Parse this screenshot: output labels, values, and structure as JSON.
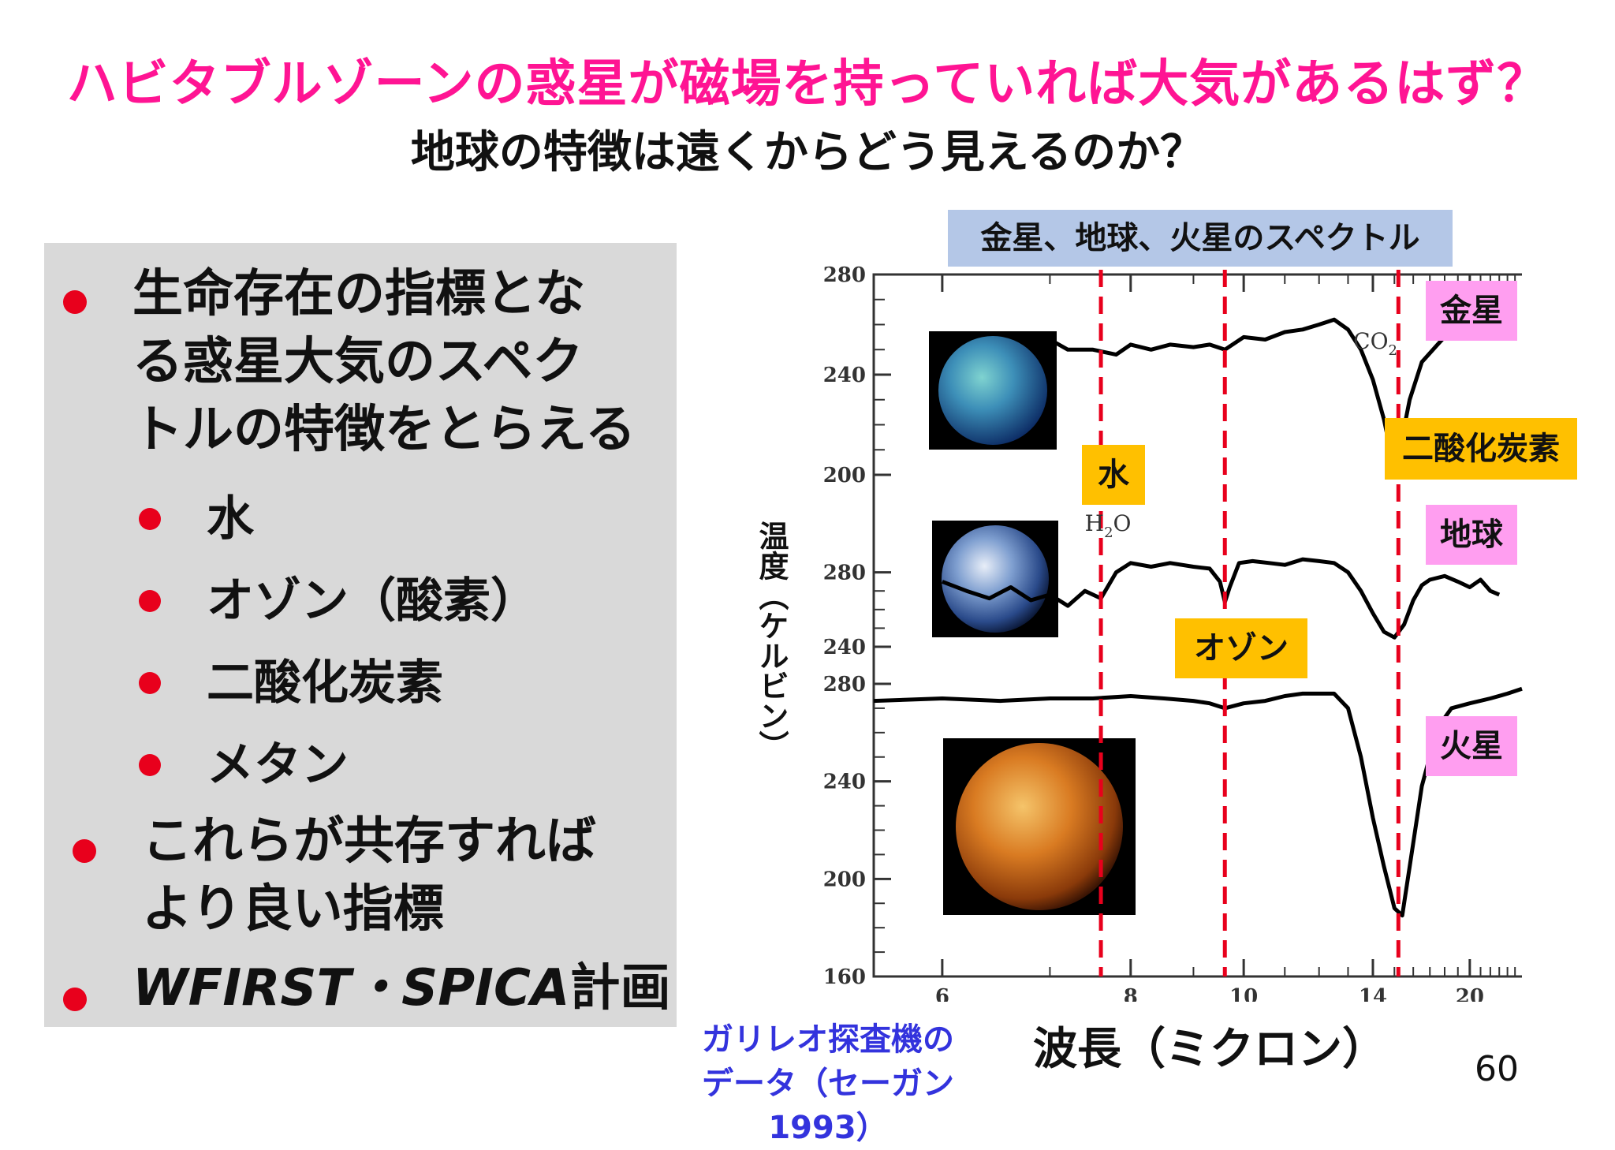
{
  "title_main": "ハビタブルゾーンの惑星が磁場を持っていれば大気があるはず？",
  "title_sub": "地球の特徴は遠くからどう見えるのか？",
  "bullets": {
    "item1": [
      "生命存在の指標とな",
      "る惑星大気のスペク",
      "トルの特徴をとらえる"
    ],
    "sub_items": [
      "水",
      "オゾン（酸素）",
      "二酸化炭素",
      "メタン"
    ],
    "item2": [
      "これらが共存すれば",
      "より良い指標"
    ],
    "item3_italic": "WFIRST・SPICA",
    "item3_rest": "計画"
  },
  "chart_header": "金星、地球、火星のスペクトル",
  "colors": {
    "title_pink": "#ff1493",
    "bullet_red": "#e8001c",
    "dashed_red": "#e8001c",
    "panel_grey": "#d9d9d9",
    "label_pink": "#ff9ef0",
    "label_orange": "#ffc000",
    "label_blue": "#b4c7e7",
    "credit_blue": "#3333dd"
  },
  "chart_data": {
    "type": "line",
    "xlabel": "波長（ミクロン）",
    "ylabel": "温度（ケルビン）",
    "x_scale": "reciprocal",
    "x_ticks": [
      6,
      8,
      10,
      14,
      20
    ],
    "dashed_markers_micron": [
      7.6,
      9.6,
      15.2
    ],
    "panels": [
      {
        "planet": "金星",
        "y_ticks": [
          280,
          240,
          200
        ],
        "ylim": [
          200,
          280
        ],
        "annotation": "CO2",
        "x": [
          7.0,
          7.2,
          7.5,
          7.8,
          8.0,
          8.3,
          8.6,
          9.0,
          9.3,
          9.6,
          10.0,
          10.5,
          11.0,
          11.5,
          12.0,
          12.5,
          13.0,
          13.5,
          14.0,
          14.5,
          14.8,
          15.0,
          15.4,
          15.8,
          16.5,
          17.5,
          18.5,
          19.5,
          21.0,
          23.0
        ],
        "y": [
          254,
          250,
          250,
          248,
          252,
          250,
          252,
          251,
          252,
          250,
          255,
          254,
          257,
          258,
          260,
          262,
          258,
          250,
          238,
          222,
          210,
          204,
          215,
          230,
          245,
          252,
          258,
          262,
          262,
          262
        ]
      },
      {
        "planet": "地球",
        "y_ticks": [
          280,
          240
        ],
        "ylim": [
          240,
          290
        ],
        "annotation": "H2O",
        "x": [
          6.0,
          6.2,
          6.4,
          6.6,
          6.8,
          7.0,
          7.2,
          7.4,
          7.6,
          7.8,
          8.0,
          8.3,
          8.6,
          9.0,
          9.3,
          9.5,
          9.6,
          9.7,
          9.9,
          10.2,
          10.6,
          11.0,
          11.5,
          12.0,
          12.5,
          13.0,
          13.5,
          14.0,
          14.5,
          15.0,
          15.5,
          16.0,
          16.5,
          17.0,
          18.0,
          19.0,
          20.0,
          21.0,
          22.0,
          23.0
        ],
        "y": [
          275,
          270,
          266,
          272,
          265,
          268,
          262,
          270,
          266,
          280,
          285,
          283,
          285,
          283,
          282,
          275,
          264,
          272,
          285,
          286,
          285,
          284,
          287,
          286,
          285,
          280,
          270,
          258,
          248,
          245,
          252,
          265,
          273,
          276,
          278,
          275,
          272,
          276,
          270,
          268
        ]
      },
      {
        "planet": "火星",
        "y_ticks": [
          280,
          240,
          200,
          160
        ],
        "ylim": [
          160,
          280
        ],
        "annotation": "",
        "x": [
          5.5,
          6.0,
          6.5,
          7.0,
          7.5,
          8.0,
          8.5,
          9.0,
          9.3,
          9.6,
          10.0,
          10.5,
          11.0,
          11.5,
          12.0,
          12.5,
          13.0,
          13.5,
          14.0,
          14.5,
          15.0,
          15.4,
          15.8,
          16.5,
          17.5,
          18.5,
          20.0,
          22.0,
          24.0,
          26.0
        ],
        "y": [
          273,
          274,
          273,
          274,
          274,
          275,
          274,
          273,
          272,
          270,
          272,
          273,
          275,
          276,
          276,
          276,
          270,
          250,
          225,
          205,
          188,
          185,
          205,
          238,
          262,
          270,
          272,
          274,
          276,
          278
        ]
      }
    ]
  },
  "images": [
    {
      "name": "venus-image",
      "desc": "金星"
    },
    {
      "name": "earth-image",
      "desc": "地球"
    },
    {
      "name": "mars-image",
      "desc": "火星"
    }
  ],
  "labels": {
    "venus": "金星",
    "earth": "地球",
    "mars": "火星",
    "water": "水",
    "ozone": "オゾン",
    "co2": "二酸化炭素",
    "co2_formula": "CO",
    "co2_sub": "2",
    "h2o_formula_h": "H",
    "h2o_sub": "2",
    "h2o_formula_o": "O"
  },
  "credit": [
    "ガリレオ探査機の",
    "データ（セーガン1993）"
  ],
  "page_number": "60"
}
